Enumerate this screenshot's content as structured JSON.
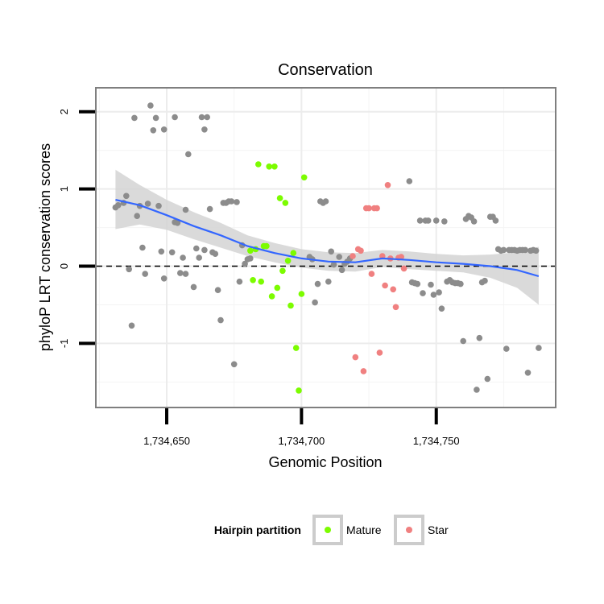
{
  "chart_data": {
    "type": "scatter",
    "title": "Conservation",
    "xlabel": "Genomic Position",
    "ylabel": "phyloP LRT conservation scores",
    "xlim": [
      1734624,
      1734794
    ],
    "ylim": [
      -1.82,
      2.3
    ],
    "x_ticks": [
      {
        "value": 1734650,
        "label": "1,734,650"
      },
      {
        "value": 1734700,
        "label": "1,734,700"
      },
      {
        "value": 1734750,
        "label": "1,734,750"
      }
    ],
    "y_ticks": [
      {
        "value": -1,
        "label": "-1"
      },
      {
        "value": 0,
        "label": "0"
      },
      {
        "value": 1,
        "label": "1"
      },
      {
        "value": 2,
        "label": "2"
      }
    ],
    "reference_line": {
      "y": 0,
      "style": "dashed",
      "color": "#000000"
    },
    "legend": {
      "title": "Hairpin partition",
      "position": "bottom",
      "entries": [
        {
          "label": "Mature",
          "color": "#7CFC00"
        },
        {
          "label": "Star",
          "color": "#F08080"
        }
      ]
    },
    "colors": {
      "other": "#8C8C8C",
      "mature": "#7CFC00",
      "star": "#F08080",
      "smooth": "#3366FF",
      "band": "#D3D3D3"
    },
    "series": [
      {
        "name": "Other",
        "color": "#8C8C8C",
        "x": [
          1734631,
          1734632,
          1734634,
          1734635,
          1734636,
          1734637,
          1734638,
          1734639,
          1734640,
          1734641,
          1734642,
          1734643,
          1734644,
          1734645,
          1734646,
          1734647,
          1734648,
          1734649,
          1734649,
          1734652,
          1734653,
          1734653,
          1734654,
          1734655,
          1734656,
          1734657,
          1734657,
          1734658,
          1734660,
          1734661,
          1734662,
          1734663,
          1734664,
          1734664,
          1734665,
          1734666,
          1734667,
          1734668,
          1734669,
          1734670,
          1734671,
          1734672,
          1734673,
          1734674,
          1734675,
          1734676,
          1734677,
          1734678,
          1734679,
          1734680,
          1734681,
          1734703,
          1734704,
          1734705,
          1734706,
          1734707,
          1734708,
          1734709,
          1734710,
          1734711,
          1734712,
          1734714,
          1734715,
          1734716,
          1734717,
          1734718,
          1734740,
          1734741,
          1734742,
          1734743,
          1734744,
          1734745,
          1734746,
          1734747,
          1734748,
          1734749,
          1734750,
          1734751,
          1734752,
          1734753,
          1734754,
          1734755,
          1734756,
          1734757,
          1734758,
          1734759,
          1734760,
          1734761,
          1734762,
          1734763,
          1734764,
          1734765,
          1734766,
          1734767,
          1734768,
          1734769,
          1734770,
          1734771,
          1734772,
          1734773,
          1734774,
          1734775,
          1734776,
          1734777,
          1734778,
          1734779,
          1734780,
          1734781,
          1734782,
          1734783,
          1734784,
          1734785,
          1734786,
          1734787,
          1734788
        ],
        "y": [
          0.76,
          0.79,
          0.82,
          0.91,
          -0.04,
          -0.77,
          1.92,
          0.65,
          0.78,
          0.24,
          -0.1,
          0.81,
          2.08,
          1.76,
          1.92,
          0.78,
          0.19,
          1.77,
          -0.16,
          0.18,
          0.57,
          1.93,
          0.56,
          -0.09,
          0.11,
          0.73,
          -0.1,
          1.45,
          -0.27,
          0.23,
          0.11,
          1.93,
          1.77,
          0.21,
          1.93,
          0.74,
          0.18,
          0.16,
          -0.31,
          -0.7,
          0.82,
          0.82,
          0.84,
          0.84,
          -1.27,
          0.83,
          -0.2,
          0.27,
          0.03,
          0.09,
          0.1,
          0.12,
          0.09,
          -0.47,
          -0.23,
          0.84,
          0.82,
          0.84,
          -0.2,
          0.19,
          0.02,
          0.12,
          -0.05,
          0.03,
          0.06,
          0.1,
          1.1,
          -0.21,
          -0.22,
          -0.23,
          0.59,
          -0.35,
          0.59,
          0.59,
          -0.24,
          -0.37,
          0.59,
          -0.34,
          -0.55,
          0.58,
          -0.2,
          -0.18,
          -0.21,
          -0.22,
          -0.22,
          -0.23,
          -0.97,
          0.61,
          0.65,
          0.63,
          0.58,
          -1.6,
          -0.93,
          -0.21,
          -0.19,
          -1.46,
          0.64,
          0.64,
          0.59,
          0.22,
          0.2,
          0.21,
          -1.07,
          0.21,
          0.21,
          0.21,
          0.2,
          0.21,
          0.21,
          0.21,
          -1.38,
          0.2,
          0.21,
          0.2,
          -1.06
        ]
      },
      {
        "name": "Mature",
        "color": "#7CFC00",
        "x": [
          1734681,
          1734682,
          1734683,
          1734684,
          1734685,
          1734686,
          1734687,
          1734688,
          1734689,
          1734690,
          1734691,
          1734692,
          1734693,
          1734694,
          1734695,
          1734696,
          1734697,
          1734698,
          1734699,
          1734700,
          1734701
        ],
        "y": [
          0.2,
          -0.18,
          0.22,
          1.32,
          -0.2,
          0.26,
          0.26,
          1.29,
          -0.39,
          1.29,
          -0.28,
          0.88,
          -0.06,
          0.82,
          0.07,
          -0.51,
          0.17,
          -1.06,
          -1.61,
          -0.36,
          1.15
        ]
      },
      {
        "name": "Star",
        "color": "#F08080",
        "x": [
          1734719,
          1734720,
          1734721,
          1734722,
          1734723,
          1734724,
          1734725,
          1734726,
          1734727,
          1734728,
          1734729,
          1734730,
          1734731,
          1734732,
          1734733,
          1734734,
          1734735,
          1734736,
          1734737,
          1734738
        ],
        "y": [
          0.13,
          -1.18,
          0.22,
          0.2,
          -1.36,
          0.75,
          0.75,
          -0.1,
          0.75,
          0.75,
          -1.12,
          0.13,
          -0.25,
          1.05,
          0.1,
          -0.3,
          -0.53,
          0.11,
          0.12,
          -0.03
        ]
      }
    ],
    "smooth": {
      "label": "loess",
      "x": [
        1734631,
        1734640,
        1734650,
        1734660,
        1734670,
        1734680,
        1734690,
        1734700,
        1734710,
        1734720,
        1734730,
        1734740,
        1734750,
        1734760,
        1734770,
        1734780,
        1734788
      ],
      "y": [
        0.86,
        0.79,
        0.66,
        0.52,
        0.4,
        0.26,
        0.17,
        0.1,
        0.06,
        0.05,
        0.1,
        0.08,
        0.05,
        0.03,
        0.0,
        -0.05,
        -0.13
      ],
      "lower": [
        0.48,
        0.54,
        0.47,
        0.35,
        0.24,
        0.13,
        0.05,
        -0.02,
        -0.06,
        -0.07,
        -0.01,
        -0.04,
        -0.06,
        -0.08,
        -0.15,
        -0.28,
        -0.5
      ],
      "upper": [
        1.25,
        1.05,
        0.86,
        0.7,
        0.56,
        0.4,
        0.3,
        0.22,
        0.18,
        0.17,
        0.21,
        0.19,
        0.16,
        0.14,
        0.15,
        0.18,
        0.25
      ]
    }
  }
}
